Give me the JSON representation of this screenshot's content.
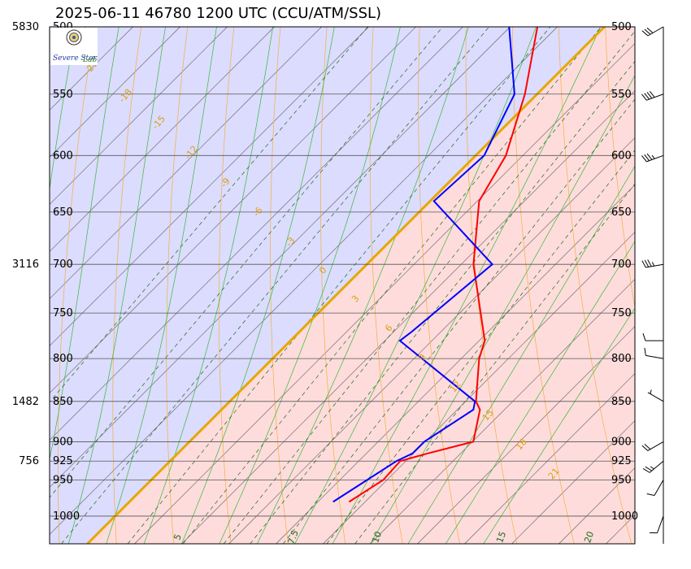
{
  "title": "2025-06-11 46780 1200 UTC (CCU/ATM/SSL)",
  "logo": {
    "text_main": "Severe Storm",
    "text_suffix": "Lab."
  },
  "chart_data": {
    "type": "skew-t",
    "pressure_range_hpa": [
      1040,
      500
    ],
    "isobars_hpa": [
      500,
      550,
      600,
      650,
      700,
      750,
      800,
      850,
      900,
      925,
      950,
      1000
    ],
    "height_labels": [
      {
        "pressure_hpa": 500,
        "height_m": "5830"
      },
      {
        "pressure_hpa": 700,
        "height_m": "3116"
      },
      {
        "pressure_hpa": 850,
        "height_m": "1482"
      },
      {
        "pressure_hpa": 925,
        "height_m": "756"
      }
    ],
    "freezing_level_line": {
      "temperature_c": 0,
      "color": "#e6a800"
    },
    "dry_adiabat_labels": [
      "21",
      "18",
      "15",
      "12",
      "9",
      "6",
      "3",
      "0",
      "-3",
      "-6",
      "-9",
      "-12",
      "-15",
      "-18",
      "-21"
    ],
    "mixing_ratio_labels": [
      "5",
      "7.5",
      "10",
      "15",
      "20"
    ],
    "temperature_profile": {
      "name": "Temperature",
      "color": "#ff0000",
      "points": [
        {
          "p": 980,
          "t": 23.3
        },
        {
          "p": 950,
          "t": 24.6
        },
        {
          "p": 925,
          "t": 24.4
        },
        {
          "p": 915,
          "t": 26.5
        },
        {
          "p": 900,
          "t": 30.1
        },
        {
          "p": 860,
          "t": 27.4
        },
        {
          "p": 850,
          "t": 26.1
        },
        {
          "p": 800,
          "t": 21.9
        },
        {
          "p": 780,
          "t": 20.6
        },
        {
          "p": 700,
          "t": 11.3
        },
        {
          "p": 640,
          "t": 5.2
        },
        {
          "p": 600,
          "t": 3.2
        },
        {
          "p": 550,
          "t": -1.3
        },
        {
          "p": 500,
          "t": -7.1
        }
      ]
    },
    "dewpoint_profile": {
      "name": "Dewpoint",
      "color": "#0000ff",
      "points": [
        {
          "p": 980,
          "t": 21.6
        },
        {
          "p": 950,
          "t": 22.9
        },
        {
          "p": 925,
          "t": 24.0
        },
        {
          "p": 915,
          "t": 24.9
        },
        {
          "p": 900,
          "t": 24.9
        },
        {
          "p": 860,
          "t": 26.7
        },
        {
          "p": 850,
          "t": 26.0
        },
        {
          "p": 780,
          "t": 11.6
        },
        {
          "p": 770,
          "t": 11.9
        },
        {
          "p": 700,
          "t": 13.3
        },
        {
          "p": 640,
          "t": 0.4
        },
        {
          "p": 600,
          "t": 0.9
        },
        {
          "p": 550,
          "t": -2.4
        },
        {
          "p": 500,
          "t": -10.1
        }
      ]
    },
    "wind_barbs": [
      {
        "p": 1000,
        "dir": 200,
        "kt": 10
      },
      {
        "p": 950,
        "dir": 210,
        "kt": 10
      },
      {
        "p": 925,
        "dir": 230,
        "kt": 25
      },
      {
        "p": 900,
        "dir": 240,
        "kt": 20
      },
      {
        "p": 850,
        "dir": 300,
        "kt": 5
      },
      {
        "p": 800,
        "dir": 280,
        "kt": 10
      },
      {
        "p": 780,
        "dir": 270,
        "kt": 10
      },
      {
        "p": 700,
        "dir": 260,
        "kt": 35
      },
      {
        "p": 600,
        "dir": 250,
        "kt": 35
      },
      {
        "p": 550,
        "dir": 250,
        "kt": 40
      },
      {
        "p": 500,
        "dir": 240,
        "kt": 30
      }
    ],
    "colors": {
      "cold_region": "#dcdcff",
      "warm_region": "#ffdcdc",
      "isotherm": "#555555",
      "dry_adiabat": "#f0b040",
      "moist_adiabat": "#33bb33",
      "mixing_ratio": "#1a6b1a"
    }
  }
}
